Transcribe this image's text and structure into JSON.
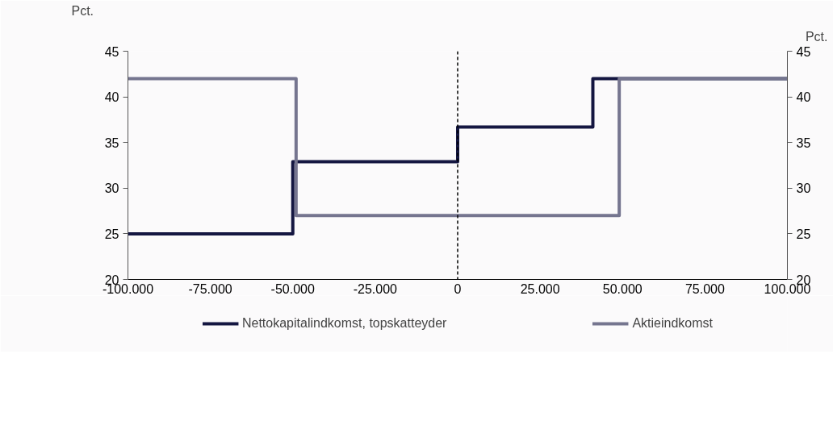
{
  "chart_data": {
    "type": "step",
    "ylabel": "Pct.",
    "y2label": "Pct.",
    "xlim": [
      -100000,
      100000
    ],
    "xticks": [
      {
        "value": -100000,
        "label": "-100.000"
      },
      {
        "value": -75000,
        "label": "-75.000"
      },
      {
        "value": -50000,
        "label": "-50.000"
      },
      {
        "value": -25000,
        "label": "-25.000"
      },
      0,
      {
        "value": 25000,
        "label": "25.000"
      },
      {
        "value": 50000,
        "label": "50.000"
      },
      {
        "value": 75000,
        "label": "75.000"
      },
      {
        "value": 100000,
        "label": "100.000"
      }
    ],
    "ylim": [
      20,
      45
    ],
    "yticks": [
      20,
      25,
      30,
      35,
      40,
      45
    ],
    "y2lim": [
      20,
      45
    ],
    "y2ticks": [
      20,
      25,
      30,
      35,
      40,
      45
    ],
    "series": [
      {
        "name": "Nettokapitalindkomst, topskatteyder",
        "color": "#141641",
        "x": [
          -100000,
          -50000,
          0,
          41000,
          100000
        ],
        "values": [
          25,
          32.9,
          36.7,
          42,
          42
        ]
      },
      {
        "name": "Aktieindkomst",
        "color": "#75758f",
        "x": [
          -100000,
          -49000,
          49000,
          100000
        ],
        "values": [
          42,
          27,
          42,
          42
        ]
      }
    ],
    "ref_lines": [
      {
        "axis": "x",
        "value": 0,
        "label": null,
        "color": "#000000",
        "line_style": "dashed"
      }
    ],
    "grid": false,
    "legend": "bottom",
    "line_style": "solid",
    "marker": "none"
  }
}
